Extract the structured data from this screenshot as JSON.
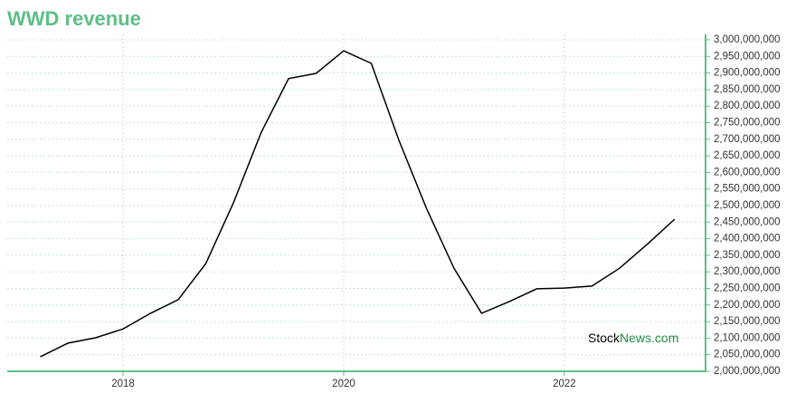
{
  "chart_data": {
    "type": "line",
    "title": "WWD revenue",
    "watermark": [
      "Stock",
      "News.com"
    ],
    "x": [
      2017.25,
      2017.5,
      2017.75,
      2018,
      2018.25,
      2018.5,
      2018.75,
      2019,
      2019.25,
      2019.5,
      2019.75,
      2020,
      2020.25,
      2020.5,
      2020.75,
      2021,
      2021.25,
      2021.5,
      2021.75,
      2022,
      2022.25,
      2022.5,
      2022.75,
      2023
    ],
    "series": [
      {
        "name": "WWD revenue",
        "color": "#000000",
        "values": [
          2044000000,
          2085000000,
          2101000000,
          2128000000,
          2175000000,
          2216000000,
          2325000000,
          2508000000,
          2719000000,
          2883000000,
          2899000000,
          2967000000,
          2929000000,
          2697000000,
          2492000000,
          2311000000,
          2175000000,
          2210000000,
          2249000000,
          2251000000,
          2257000000,
          2311000000,
          2383000000,
          2459000000
        ]
      }
    ],
    "xlim": [
      2016.95,
      2023.28
    ],
    "xticks": [
      2018,
      2020,
      2022
    ],
    "ylim": [
      2000000000,
      3000000000
    ],
    "yticks": [
      {
        "value": 2000000000,
        "label": "2,000,000,000"
      },
      {
        "value": 2050000000,
        "label": "2,050,000,000"
      },
      {
        "value": 2100000000,
        "label": "2,100,000,000"
      },
      {
        "value": 2150000000,
        "label": "2,150,000,000"
      },
      {
        "value": 2200000000,
        "label": "2,200,000,000"
      },
      {
        "value": 2250000000,
        "label": "2,250,000,000"
      },
      {
        "value": 2300000000,
        "label": "2,300,000,000"
      },
      {
        "value": 2350000000,
        "label": "2,350,000,000"
      },
      {
        "value": 2400000000,
        "label": "2,400,000,000"
      },
      {
        "value": 2450000000,
        "label": "2,450,000,000"
      },
      {
        "value": 2500000000,
        "label": "2,500,000,000"
      },
      {
        "value": 2550000000,
        "label": "2,550,000,000"
      },
      {
        "value": 2600000000,
        "label": "2,600,000,000"
      },
      {
        "value": 2650000000,
        "label": "2,650,000,000"
      },
      {
        "value": 2700000000,
        "label": "2,700,000,000"
      },
      {
        "value": 2750000000,
        "label": "2,750,000,000"
      },
      {
        "value": 2800000000,
        "label": "2,800,000,000"
      },
      {
        "value": 2850000000,
        "label": "2,850,000,000"
      },
      {
        "value": 2900000000,
        "label": "2,900,000,000"
      },
      {
        "value": 2950000000,
        "label": "2,950,000,000"
      },
      {
        "value": 3000000000,
        "label": "3,000,000,000"
      }
    ],
    "grid": true,
    "axis_color": "#5cbf85"
  }
}
